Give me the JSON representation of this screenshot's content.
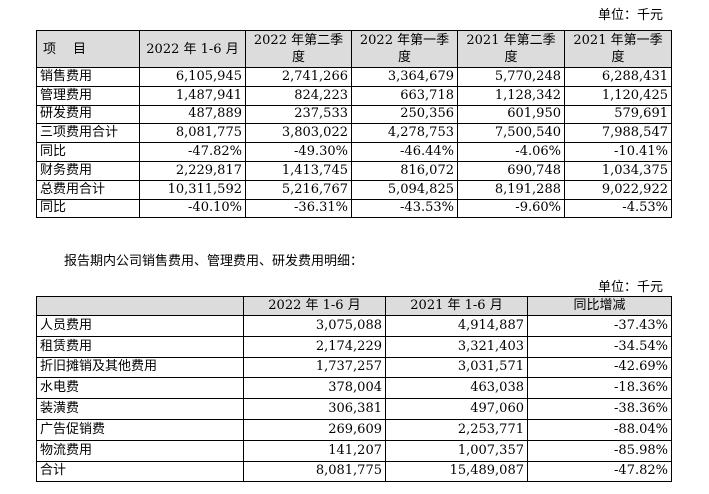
{
  "table1": {
    "unit_label": "单位：千元",
    "headers": [
      "项　目",
      "2022 年 1-6 月",
      "2022 年第二季度",
      "2022 年第一季度",
      "2021 年第二季度",
      "2021 年第一季度"
    ],
    "rows": [
      [
        "销售费用",
        "6,105,945",
        "2,741,266",
        "3,364,679",
        "5,770,248",
        "6,288,431"
      ],
      [
        "管理费用",
        "1,487,941",
        "824,223",
        "663,718",
        "1,128,342",
        "1,120,425"
      ],
      [
        "研发费用",
        "487,889",
        "237,533",
        "250,356",
        "601,950",
        "579,691"
      ],
      [
        "三项费用合计",
        "8,081,775",
        "3,803,022",
        "4,278,753",
        "7,500,540",
        "7,988,547"
      ],
      [
        "同比",
        "-47.82%",
        "-49.30%",
        "-46.44%",
        "-4.06%",
        "-10.41%"
      ],
      [
        "财务费用",
        "2,229,817",
        "1,413,745",
        "816,072",
        "690,748",
        "1,034,375"
      ],
      [
        "总费用合计",
        "10,311,592",
        "5,216,767",
        "5,094,825",
        "8,191,288",
        "9,022,922"
      ],
      [
        "同比",
        "-40.10%",
        "-36.31%",
        "-43.53%",
        "-9.60%",
        "-4.53%"
      ]
    ]
  },
  "note": "报告期内公司销售费用、管理费用、研发费用明细：",
  "table2": {
    "unit_label": "单位：千元",
    "headers": [
      "",
      "2022 年 1-6 月",
      "2021 年 1-6 月",
      "同比增减"
    ],
    "rows": [
      [
        "人员费用",
        "3,075,088",
        "4,914,887",
        "-37.43%"
      ],
      [
        "租赁费用",
        "2,174,229",
        "3,321,403",
        "-34.54%"
      ],
      [
        "折旧摊销及其他费用",
        "1,737,257",
        "3,031,571",
        "-42.69%"
      ],
      [
        "水电费",
        "378,004",
        "463,038",
        "-18.36%"
      ],
      [
        "装潢费",
        "306,381",
        "497,060",
        "-38.36%"
      ],
      [
        "广告促销费",
        "269,609",
        "2,253,771",
        "-88.04%"
      ],
      [
        "物流费用",
        "141,207",
        "1,007,357",
        "-85.98%"
      ],
      [
        "合计",
        "8,081,775",
        "15,489,087",
        "-47.82%"
      ]
    ]
  }
}
